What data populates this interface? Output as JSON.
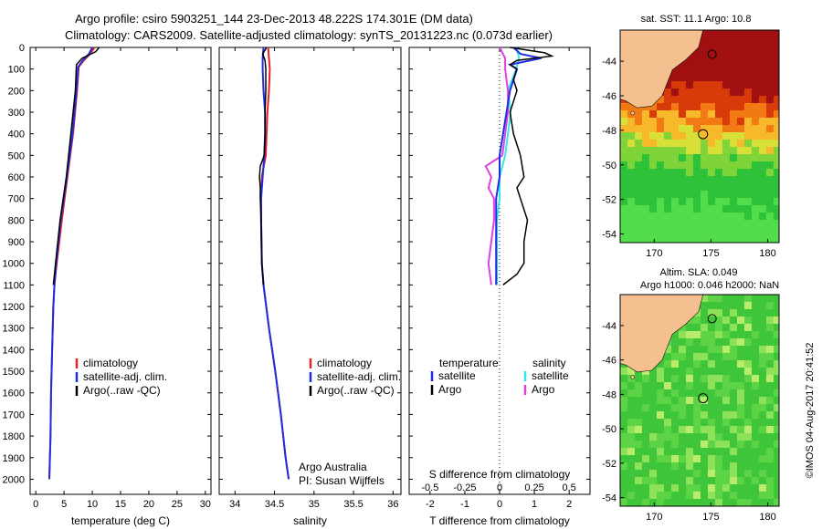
{
  "title": {
    "line1": "Argo profile: csiro 5903251_144 23-Dec-2013 48.222S 174.301E (DM data)",
    "line2": "Climatology: CARS2009. Satellite-adjusted climatology: synTS_20131223.nc (0.073d earlier)"
  },
  "colors": {
    "climatology": "#e8202a",
    "satellite": "#1f2ee0",
    "argo": "#000000",
    "sat_salt": "#33e8e8",
    "argo_salt": "#e040e0"
  },
  "chart_data": [
    {
      "type": "line",
      "id": "temperature",
      "xlabel": "temperature (deg C)",
      "xlim": [
        -1,
        31
      ],
      "xticks": [
        0,
        5,
        10,
        15,
        20,
        25,
        30
      ],
      "ylim": [
        0,
        2070
      ],
      "yticks": [
        0,
        100,
        200,
        300,
        400,
        500,
        600,
        700,
        800,
        900,
        1000,
        1100,
        1200,
        1300,
        1400,
        1500,
        1600,
        1700,
        1800,
        1900,
        2000
      ],
      "legend": [
        "climatology",
        "satellite-adj. clim.",
        "Argo(..raw -QC)"
      ],
      "series": [
        {
          "name": "climatology",
          "depth": [
            0,
            30,
            60,
            90,
            200,
            400,
            600,
            800,
            1000,
            1100,
            1200,
            1400,
            1600,
            1800,
            2000
          ],
          "values": [
            10.4,
            9.6,
            8.5,
            7.6,
            7.3,
            6.6,
            5.6,
            4.6,
            3.7,
            3.3,
            3.1,
            2.9,
            2.7,
            2.6,
            2.4
          ]
        },
        {
          "name": "satellite-adj. clim.",
          "depth": [
            0,
            30,
            60,
            90,
            200,
            400,
            600,
            800,
            1000,
            1100,
            1200,
            1400,
            1600,
            1800,
            2000
          ],
          "values": [
            10.0,
            9.4,
            8.3,
            7.5,
            7.2,
            6.5,
            5.5,
            4.4,
            3.6,
            3.3,
            3.1,
            2.9,
            2.7,
            2.6,
            2.4
          ]
        },
        {
          "name": "Argo(..raw -QC)",
          "depth": [
            0,
            20,
            50,
            80,
            200,
            400,
            600,
            800,
            1000,
            1100
          ],
          "values": [
            11.2,
            10.6,
            8.2,
            7.2,
            7.0,
            6.2,
            5.4,
            4.3,
            3.5,
            3.1
          ]
        }
      ]
    },
    {
      "type": "line",
      "id": "salinity",
      "xlabel": "salinity",
      "xlim": [
        33.8,
        36.1
      ],
      "xticks": [
        34,
        34.5,
        35,
        35.5,
        36
      ],
      "ylim": [
        0,
        2070
      ],
      "legend": [
        "climatology",
        "satellite-adj. clim.",
        "Argo(..raw -QC)"
      ],
      "series": [
        {
          "name": "climatology",
          "depth": [
            0,
            50,
            100,
            200,
            300,
            400,
            500,
            600,
            700,
            800,
            1000,
            1100,
            1300,
            1500,
            1700,
            1900,
            2000
          ],
          "values": [
            34.42,
            34.43,
            34.44,
            34.43,
            34.41,
            34.4,
            34.39,
            34.34,
            34.33,
            34.33,
            34.34,
            34.36,
            34.43,
            34.51,
            34.58,
            34.64,
            34.68
          ]
        },
        {
          "name": "satellite-adj. clim.",
          "depth": [
            0,
            50,
            100,
            200,
            300,
            400,
            500,
            600,
            700,
            800,
            1000,
            1100,
            1300,
            1500,
            1700,
            1900,
            2000
          ],
          "values": [
            34.36,
            34.35,
            34.35,
            34.36,
            34.38,
            34.38,
            34.37,
            34.35,
            34.33,
            34.33,
            34.34,
            34.36,
            34.43,
            34.51,
            34.58,
            34.64,
            34.68
          ]
        },
        {
          "name": "Argo(..raw -QC)",
          "depth": [
            0,
            30,
            60,
            100,
            200,
            300,
            400,
            500,
            550,
            600,
            650,
            700,
            800,
            1000,
            1100
          ],
          "values": [
            34.4,
            34.35,
            34.38,
            34.39,
            34.39,
            34.38,
            34.38,
            34.37,
            34.32,
            34.31,
            34.32,
            34.32,
            34.33,
            34.34,
            34.36
          ]
        }
      ],
      "annotation": [
        "Argo Australia",
        "PI: Susan Wijffels"
      ]
    },
    {
      "type": "line",
      "id": "difference",
      "xlabel": "T difference from climatology",
      "xlabel_top": "S difference from climatology",
      "xlim": [
        -2.6,
        2.6
      ],
      "xticks": [
        -2,
        -1,
        0,
        1,
        2
      ],
      "xticks_top": [
        "-0.5",
        "-0.25",
        "0",
        "0.25",
        "0.5"
      ],
      "ylim": [
        0,
        2070
      ],
      "legend_titles": [
        "temperature",
        "salinity"
      ],
      "legend": [
        "satellite",
        "Argo",
        "satellite",
        "Argo"
      ],
      "series": [
        {
          "name": "temperature satellite",
          "depth": [
            0,
            30,
            50,
            80,
            100,
            200,
            300,
            400,
            500,
            600,
            700,
            800,
            900,
            1000,
            1100
          ],
          "values": [
            0.4,
            0.6,
            1.2,
            0.3,
            0.5,
            0.3,
            0.2,
            0.1,
            0.0,
            0.0,
            -0.1,
            -0.1,
            -0.1,
            -0.1,
            -0.1
          ]
        },
        {
          "name": "temperature Argo",
          "depth": [
            0,
            25,
            40,
            60,
            80,
            100,
            150,
            200,
            300,
            400,
            500,
            600,
            650,
            700,
            800,
            900,
            1000,
            1050,
            1100
          ],
          "values": [
            0.3,
            1.3,
            1.5,
            0.5,
            0.3,
            0.5,
            0.4,
            0.5,
            0.3,
            0.4,
            0.6,
            0.7,
            0.5,
            0.6,
            0.8,
            0.7,
            0.7,
            0.5,
            0.1
          ]
        },
        {
          "name": "salinity satellite",
          "depth": [
            0,
            50,
            100,
            200,
            300,
            400,
            500,
            600,
            700,
            800,
            900,
            1000,
            1100
          ],
          "values": [
            0.12,
            0.14,
            0.12,
            0.06,
            0.08,
            0.06,
            0.04,
            0.0,
            0.0,
            -0.02,
            -0.02,
            -0.02,
            -0.02
          ]
        },
        {
          "name": "salinity Argo",
          "depth": [
            0,
            50,
            100,
            200,
            300,
            400,
            500,
            550,
            600,
            650,
            700,
            800,
            900,
            1000,
            1100
          ],
          "values": [
            0.0,
            0.04,
            0.04,
            0.06,
            0.06,
            0.04,
            0.02,
            -0.1,
            -0.06,
            -0.08,
            -0.04,
            -0.04,
            -0.06,
            -0.08,
            -0.06
          ]
        }
      ]
    },
    {
      "type": "heatmap",
      "id": "sst_map",
      "title": "sat. SST: 11.1  Argo: 10.8",
      "xlim": [
        167,
        181
      ],
      "ylim": [
        -54.5,
        -42.2
      ],
      "xticks": [
        170,
        175,
        180
      ],
      "yticks": [
        -44,
        -46,
        -48,
        -50,
        -52,
        -54
      ]
    },
    {
      "type": "heatmap",
      "id": "sla_map",
      "title": "Altim. SLA: 0.049",
      "subtitle": "Argo h1000: 0.046 h2000: NaN",
      "xlim": [
        167,
        181
      ],
      "ylim": [
        -54.5,
        -42.2
      ],
      "xticks": [
        170,
        175,
        180
      ],
      "yticks": [
        -44,
        -46,
        -48,
        -50,
        -52,
        -54
      ]
    }
  ],
  "credit": "©IMOS 04-Aug-2017 20:41:52"
}
